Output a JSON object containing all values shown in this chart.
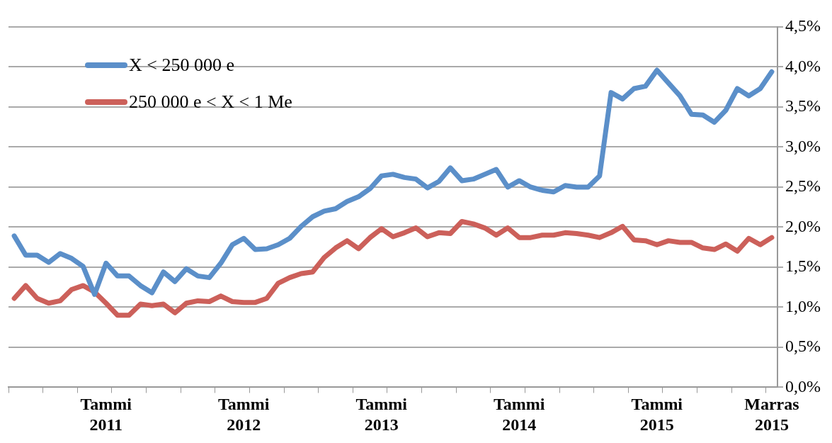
{
  "chart_data": {
    "type": "line",
    "categories": [
      null,
      null,
      null,
      null,
      null,
      null,
      null,
      null,
      "Tammi 2011",
      null,
      null,
      null,
      null,
      null,
      null,
      null,
      null,
      null,
      null,
      null,
      "Tammi 2012",
      null,
      null,
      null,
      null,
      null,
      null,
      null,
      null,
      null,
      null,
      null,
      "Tammi 2013",
      null,
      null,
      null,
      null,
      null,
      null,
      null,
      null,
      null,
      null,
      null,
      "Tammi 2014",
      null,
      null,
      null,
      null,
      null,
      null,
      null,
      null,
      null,
      null,
      null,
      "Tammi 2015",
      null,
      null,
      null,
      null,
      null,
      null,
      null,
      null,
      null,
      "Marras 2015"
    ],
    "series": [
      {
        "name": "X < 250 000 e",
        "color": "#5b8fc9",
        "values": [
          1.89,
          1.65,
          1.65,
          1.56,
          1.67,
          1.61,
          1.51,
          1.16,
          1.55,
          1.39,
          1.39,
          1.27,
          1.18,
          1.44,
          1.32,
          1.48,
          1.39,
          1.37,
          1.55,
          1.78,
          1.86,
          1.72,
          1.73,
          1.78,
          1.86,
          2.01,
          2.13,
          2.2,
          2.23,
          2.32,
          2.38,
          2.48,
          2.64,
          2.66,
          2.62,
          2.6,
          2.49,
          2.57,
          2.74,
          2.58,
          2.6,
          2.66,
          2.72,
          2.5,
          2.58,
          2.5,
          2.46,
          2.44,
          2.52,
          2.5,
          2.5,
          2.64,
          3.68,
          3.6,
          3.73,
          3.76,
          3.96,
          3.8,
          3.64,
          3.41,
          3.4,
          3.31,
          3.46,
          3.73,
          3.64,
          3.73,
          3.94
        ]
      },
      {
        "name": "250 000 e < X < 1 Me",
        "color": "#cc605a",
        "values": [
          1.11,
          1.27,
          1.11,
          1.05,
          1.08,
          1.22,
          1.27,
          1.19,
          1.05,
          0.9,
          0.9,
          1.04,
          1.02,
          1.04,
          0.93,
          1.05,
          1.08,
          1.07,
          1.14,
          1.07,
          1.06,
          1.06,
          1.11,
          1.3,
          1.37,
          1.42,
          1.44,
          1.62,
          1.74,
          1.83,
          1.73,
          1.87,
          1.98,
          1.88,
          1.93,
          1.99,
          1.88,
          1.93,
          1.92,
          2.07,
          2.04,
          1.99,
          1.9,
          1.99,
          1.87,
          1.87,
          1.9,
          1.9,
          1.93,
          1.92,
          1.9,
          1.87,
          1.93,
          2.01,
          1.84,
          1.83,
          1.78,
          1.83,
          1.81,
          1.81,
          1.74,
          1.72,
          1.79,
          1.7,
          1.86,
          1.78,
          1.87
        ]
      }
    ],
    "ylim": [
      0,
      4.5
    ],
    "yticks": [
      {
        "value": 0,
        "label": "0,0%"
      },
      {
        "value": 0.5,
        "label": "0,5%"
      },
      {
        "value": 1,
        "label": "1,0%"
      },
      {
        "value": 1.5,
        "label": "1,5%"
      },
      {
        "value": 2,
        "label": "2,0%"
      },
      {
        "value": 2.5,
        "label": "2,5%"
      },
      {
        "value": 3,
        "label": "3,0%"
      },
      {
        "value": 3.5,
        "label": "3,5%"
      },
      {
        "value": 4,
        "label": "4,0%"
      },
      {
        "value": 4.5,
        "label": "4,5%"
      }
    ],
    "grid": "y",
    "legend": "top left",
    "marker": "none",
    "line_style": "solid"
  }
}
